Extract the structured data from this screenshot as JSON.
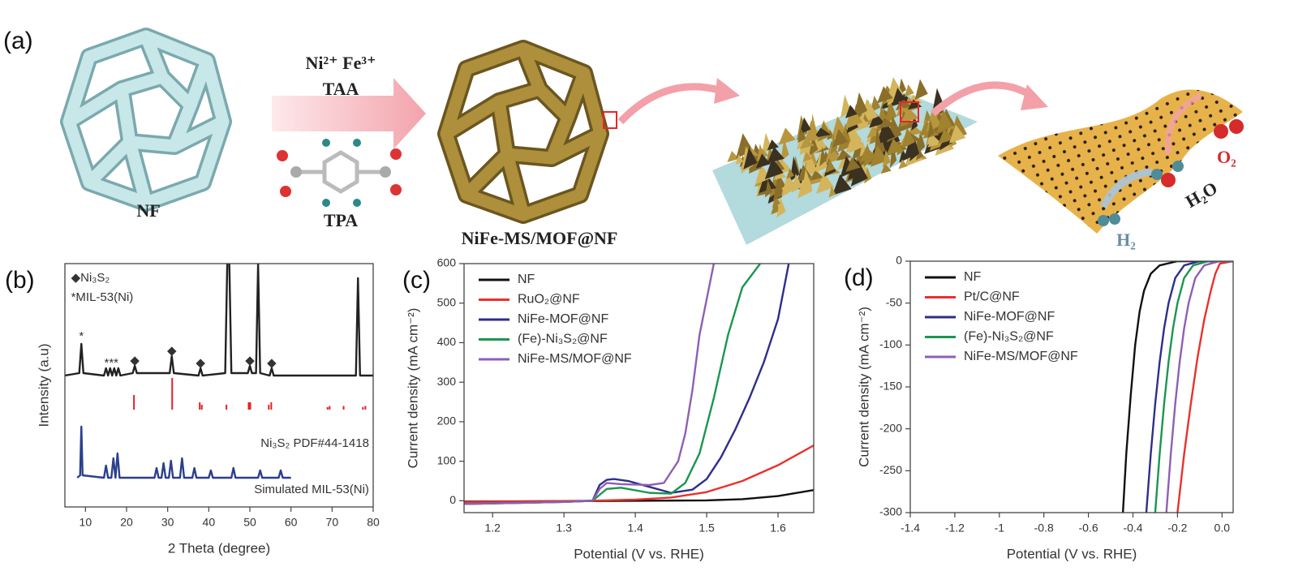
{
  "panel_a": {
    "panel": "(a)",
    "labels": {
      "nf": "NF",
      "ions": "Ni²⁺ Fe³⁺",
      "taa": "TAA",
      "tpa": "TPA",
      "product": "NiFe-MS/MOF@NF",
      "o2": "O₂",
      "h2o": "H₂O",
      "h2": "H₂"
    }
  },
  "chart_data": [
    {
      "type": "line",
      "panel": "(b)",
      "x_label": "2 Theta (degree)",
      "y_label": "Intensity (a.u)",
      "xlim": [
        5,
        80
      ],
      "xticks": [
        10,
        20,
        30,
        40,
        50,
        60,
        70,
        80
      ],
      "ylim": [
        0,
        100
      ],
      "series": [
        {
          "color": "#222222",
          "x": [
            5,
            8.5,
            9,
            9.5,
            14.5,
            15,
            15.5,
            16,
            16.5,
            17,
            17.5,
            18,
            18.5,
            21.5,
            22,
            22.5,
            30.5,
            31,
            31.5,
            37.5,
            38,
            38.5,
            44,
            44.5,
            45,
            45.5,
            49.5,
            50,
            50.5,
            51.5,
            52,
            52.5,
            54.8,
            55.3,
            55.8,
            75.8,
            76.3,
            76.8,
            80
          ],
          "values": [
            54,
            55,
            67,
            55,
            54,
            57,
            54,
            57,
            54,
            57,
            54,
            57,
            54,
            55,
            58,
            55,
            55,
            62,
            55,
            54,
            57,
            54,
            55,
            100,
            100,
            55,
            55,
            58,
            55,
            55,
            100,
            55,
            54,
            57,
            54,
            54,
            94,
            54,
            54
          ]
        },
        {
          "color": "#e02424",
          "baseline": 40,
          "x": [
            21.8,
            31.1,
            37.8,
            38.3,
            44.3,
            49.7,
            50.1,
            54.6,
            55.2,
            68.9,
            69.4,
            72.8,
            77.5,
            78.1
          ],
          "values": [
            46,
            53,
            43,
            42,
            42,
            43,
            43,
            42,
            43,
            41,
            41.5,
            41.5,
            41,
            41.5
          ]
        },
        {
          "color": "#2b3f8c",
          "x": [
            8,
            8.7,
            9,
            9.3,
            14.5,
            15,
            15.5,
            16.3,
            16.8,
            17.3,
            17.8,
            18.3,
            26.8,
            27.3,
            27.8,
            28.5,
            29,
            29.5,
            30.3,
            30.8,
            31.3,
            33,
            33.5,
            34,
            36,
            36.5,
            37,
            40,
            40.5,
            41,
            45.5,
            46,
            46.5,
            52,
            52.5,
            53,
            57,
            57.5,
            58,
            60
          ],
          "values": [
            12,
            13,
            33,
            13,
            12,
            17,
            12,
            12,
            20,
            12,
            22,
            12,
            12,
            16,
            12,
            12,
            18,
            12,
            12,
            19,
            12,
            12,
            20,
            12,
            12,
            16,
            12,
            12,
            15,
            12,
            12,
            16,
            12,
            12,
            15,
            12,
            12,
            15,
            12,
            12
          ]
        }
      ],
      "annotations": [
        {
          "text": "◆Ni₃S₂",
          "x": 6.5,
          "y": 94
        },
        {
          "text": "*MIL-53(Ni)",
          "x": 6.5,
          "y": 86
        },
        {
          "text": "*",
          "x": 9,
          "y": 70
        },
        {
          "text": "***",
          "x": 16.3,
          "y": 59
        },
        {
          "text": "◆",
          "x": 22,
          "y": 60
        },
        {
          "text": "◆",
          "x": 31,
          "y": 64
        },
        {
          "text": "◆",
          "x": 38,
          "y": 59
        },
        {
          "text": "◆",
          "x": 50,
          "y": 60
        },
        {
          "text": "◆",
          "x": 55.3,
          "y": 59
        },
        {
          "text": "Ni₃S₂ PDF#44-1418",
          "x": 79,
          "y": 26
        },
        {
          "text": "Simulated MIL-53(Ni)",
          "x": 79,
          "y": 7
        }
      ]
    },
    {
      "type": "line",
      "panel": "(c)",
      "x_label": "Potential (V vs. RHE)",
      "y_label": "Current density (mA cm⁻²)",
      "xlim": [
        1.16,
        1.65
      ],
      "xticks": [
        1.2,
        1.3,
        1.4,
        1.5,
        1.6
      ],
      "ylim": [
        -30,
        600
      ],
      "yticks": [
        0,
        100,
        200,
        300,
        400,
        500,
        600
      ],
      "legend": "upper left",
      "series": [
        {
          "name": "NF",
          "color": "#111111",
          "x": [
            1.16,
            1.3,
            1.4,
            1.5,
            1.55,
            1.6,
            1.65
          ],
          "values": [
            -2,
            -1,
            0,
            1,
            4,
            12,
            27
          ]
        },
        {
          "name": "RuO₂@NF",
          "color": "#e8322b",
          "x": [
            1.16,
            1.34,
            1.4,
            1.45,
            1.5,
            1.55,
            1.6,
            1.65
          ],
          "values": [
            -3,
            0,
            3,
            8,
            22,
            50,
            90,
            140
          ]
        },
        {
          "name": "NiFe-MOF@NF",
          "color": "#2e2e8a",
          "x": [
            1.16,
            1.3,
            1.34,
            1.35,
            1.36,
            1.37,
            1.39,
            1.42,
            1.45,
            1.48,
            1.5,
            1.52,
            1.54,
            1.56,
            1.58,
            1.6,
            1.615
          ],
          "values": [
            -8,
            -3,
            0,
            40,
            53,
            55,
            50,
            35,
            20,
            28,
            55,
            110,
            180,
            260,
            350,
            460,
            600
          ]
        },
        {
          "name": "(Fe)-Ni₃S₂@NF",
          "color": "#1a9650",
          "x": [
            1.16,
            1.3,
            1.34,
            1.36,
            1.38,
            1.42,
            1.45,
            1.47,
            1.49,
            1.51,
            1.53,
            1.55,
            1.575
          ],
          "values": [
            -8,
            -3,
            0,
            30,
            33,
            20,
            18,
            45,
            120,
            260,
            420,
            540,
            600
          ]
        },
        {
          "name": "NiFe-MS/MOF@NF",
          "color": "#8e5fb5",
          "x": [
            1.16,
            1.3,
            1.34,
            1.35,
            1.36,
            1.38,
            1.42,
            1.44,
            1.46,
            1.47,
            1.48,
            1.49,
            1.51
          ],
          "values": [
            -8,
            -3,
            0,
            30,
            45,
            42,
            40,
            45,
            100,
            170,
            280,
            420,
            600
          ]
        }
      ]
    },
    {
      "type": "line",
      "panel": "(d)",
      "x_label": "Potential (V vs. RHE)",
      "y_label": "Current density (mA cm⁻²)",
      "xlim": [
        -1.4,
        0.05
      ],
      "xticks": [
        -1.4,
        -1.2,
        -1,
        -0.8,
        -0.6,
        -0.4,
        -0.2,
        {
          "value": 0,
          "label": "0.0"
        }
      ],
      "ylim": [
        -300,
        0
      ],
      "yticks": [
        -300,
        -250,
        -200,
        -150,
        -100,
        -50,
        0
      ],
      "legend": "upper left",
      "series": [
        {
          "name": "NF",
          "color": "#111111",
          "x": [
            -0.445,
            -0.43,
            -0.41,
            -0.39,
            -0.37,
            -0.35,
            -0.32,
            -0.28,
            -0.2,
            0.05
          ],
          "values": [
            -300,
            -230,
            -160,
            -100,
            -60,
            -35,
            -15,
            -5,
            0,
            0
          ]
        },
        {
          "name": "Pt/C@NF",
          "color": "#e8322b",
          "x": [
            -0.2,
            -0.17,
            -0.14,
            -0.11,
            -0.08,
            -0.05,
            -0.03,
            -0.01,
            0.05
          ],
          "values": [
            -300,
            -230,
            -170,
            -115,
            -70,
            -35,
            -15,
            -3,
            0
          ]
        },
        {
          "name": "NiFe-MOF@NF",
          "color": "#2e2e8a",
          "x": [
            -0.34,
            -0.32,
            -0.3,
            -0.28,
            -0.26,
            -0.24,
            -0.21,
            -0.17,
            -0.1,
            0.05
          ],
          "values": [
            -300,
            -230,
            -170,
            -120,
            -80,
            -50,
            -20,
            -5,
            0,
            0
          ]
        },
        {
          "name": "(Fe)-Ni₃S₂@NF",
          "color": "#1a9650",
          "x": [
            -0.3,
            -0.28,
            -0.26,
            -0.24,
            -0.22,
            -0.2,
            -0.17,
            -0.13,
            -0.06,
            0.05
          ],
          "values": [
            -300,
            -230,
            -170,
            -120,
            -80,
            -50,
            -20,
            -5,
            0,
            0
          ]
        },
        {
          "name": "NiFe-MS/MOF@NF",
          "color": "#8e5fb5",
          "x": [
            -0.25,
            -0.23,
            -0.21,
            -0.19,
            -0.17,
            -0.15,
            -0.12,
            -0.08,
            -0.01,
            0.05
          ],
          "values": [
            -300,
            -230,
            -170,
            -120,
            -80,
            -50,
            -20,
            -5,
            0,
            0
          ]
        }
      ]
    }
  ]
}
